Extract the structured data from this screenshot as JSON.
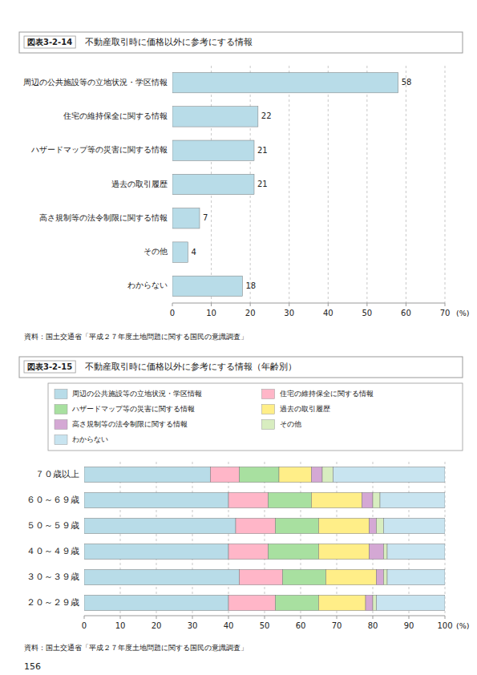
{
  "chart_data": [
    {
      "type": "bar",
      "orientation": "horizontal",
      "title": "不動産取引時に価格以外に参考にする情報",
      "categories": [
        "周辺の公共施設等の立地状況・学区情報",
        "住宅の維持保全に関する情報",
        "ハザードマップ等の災害に関する情報",
        "過去の取引履歴",
        "高さ規制等の法令制限に関する情報",
        "その他",
        "わからない"
      ],
      "values": [
        58,
        22,
        21,
        21,
        7,
        4,
        18
      ],
      "color": "#b8dce8",
      "xlim": [
        0,
        70
      ],
      "xticks": [
        0,
        10,
        20,
        30,
        40,
        50,
        60,
        70
      ],
      "xlabel": "(%)",
      "grid": true,
      "data_labels": true,
      "annotations": [
        "図表3-2-14",
        "資料：国土交通省「平成２７年度土地問題に関する国民の意識調査」"
      ]
    },
    {
      "type": "bar",
      "orientation": "horizontal",
      "stacked": true,
      "title": "不動産取引時に価格以外に参考にする情報（年齢別）",
      "categories": [
        "２０～２９歳",
        "３０～３９歳",
        "４０～４９歳",
        "５０～５９歳",
        "６０～６９歳",
        "７０歳以上"
      ],
      "series": [
        {
          "name": "周辺の公共施設等の立地状況・学区情報",
          "color": "#b8dce8",
          "values": [
            40,
            43,
            40,
            42,
            40,
            35
          ]
        },
        {
          "name": "住宅の維持保全に関する情報",
          "color": "#ffb6c8",
          "values": [
            13,
            12,
            11,
            11,
            11,
            8
          ]
        },
        {
          "name": "ハザードマップ等の災害に関する情報",
          "color": "#a8e0a0",
          "values": [
            12,
            12,
            14,
            12,
            12,
            11
          ]
        },
        {
          "name": "過去の取引履歴",
          "color": "#ffee88",
          "values": [
            13,
            14,
            14,
            14,
            14,
            9
          ]
        },
        {
          "name": "高さ規制等の法令制限に関する情報",
          "color": "#d4a8d4",
          "values": [
            2,
            2,
            4,
            2,
            3,
            3
          ]
        },
        {
          "name": "その他",
          "color": "#d8edc0",
          "values": [
            1,
            1,
            1,
            2,
            2,
            3
          ]
        },
        {
          "name": "わからない",
          "color": "#c8e4f0",
          "values": [
            19,
            16,
            16,
            17,
            18,
            31
          ]
        }
      ],
      "xlim": [
        0,
        100
      ],
      "xticks": [
        0,
        10,
        20,
        30,
        40,
        50,
        60,
        70,
        80,
        90,
        100
      ],
      "xlabel": "(%)",
      "grid": true,
      "legend": "top",
      "annotations": [
        "図表3-2-15",
        "資料：国土交通省「平成２７年度土地問題に関する国民の意識調査」",
        "156"
      ]
    }
  ]
}
